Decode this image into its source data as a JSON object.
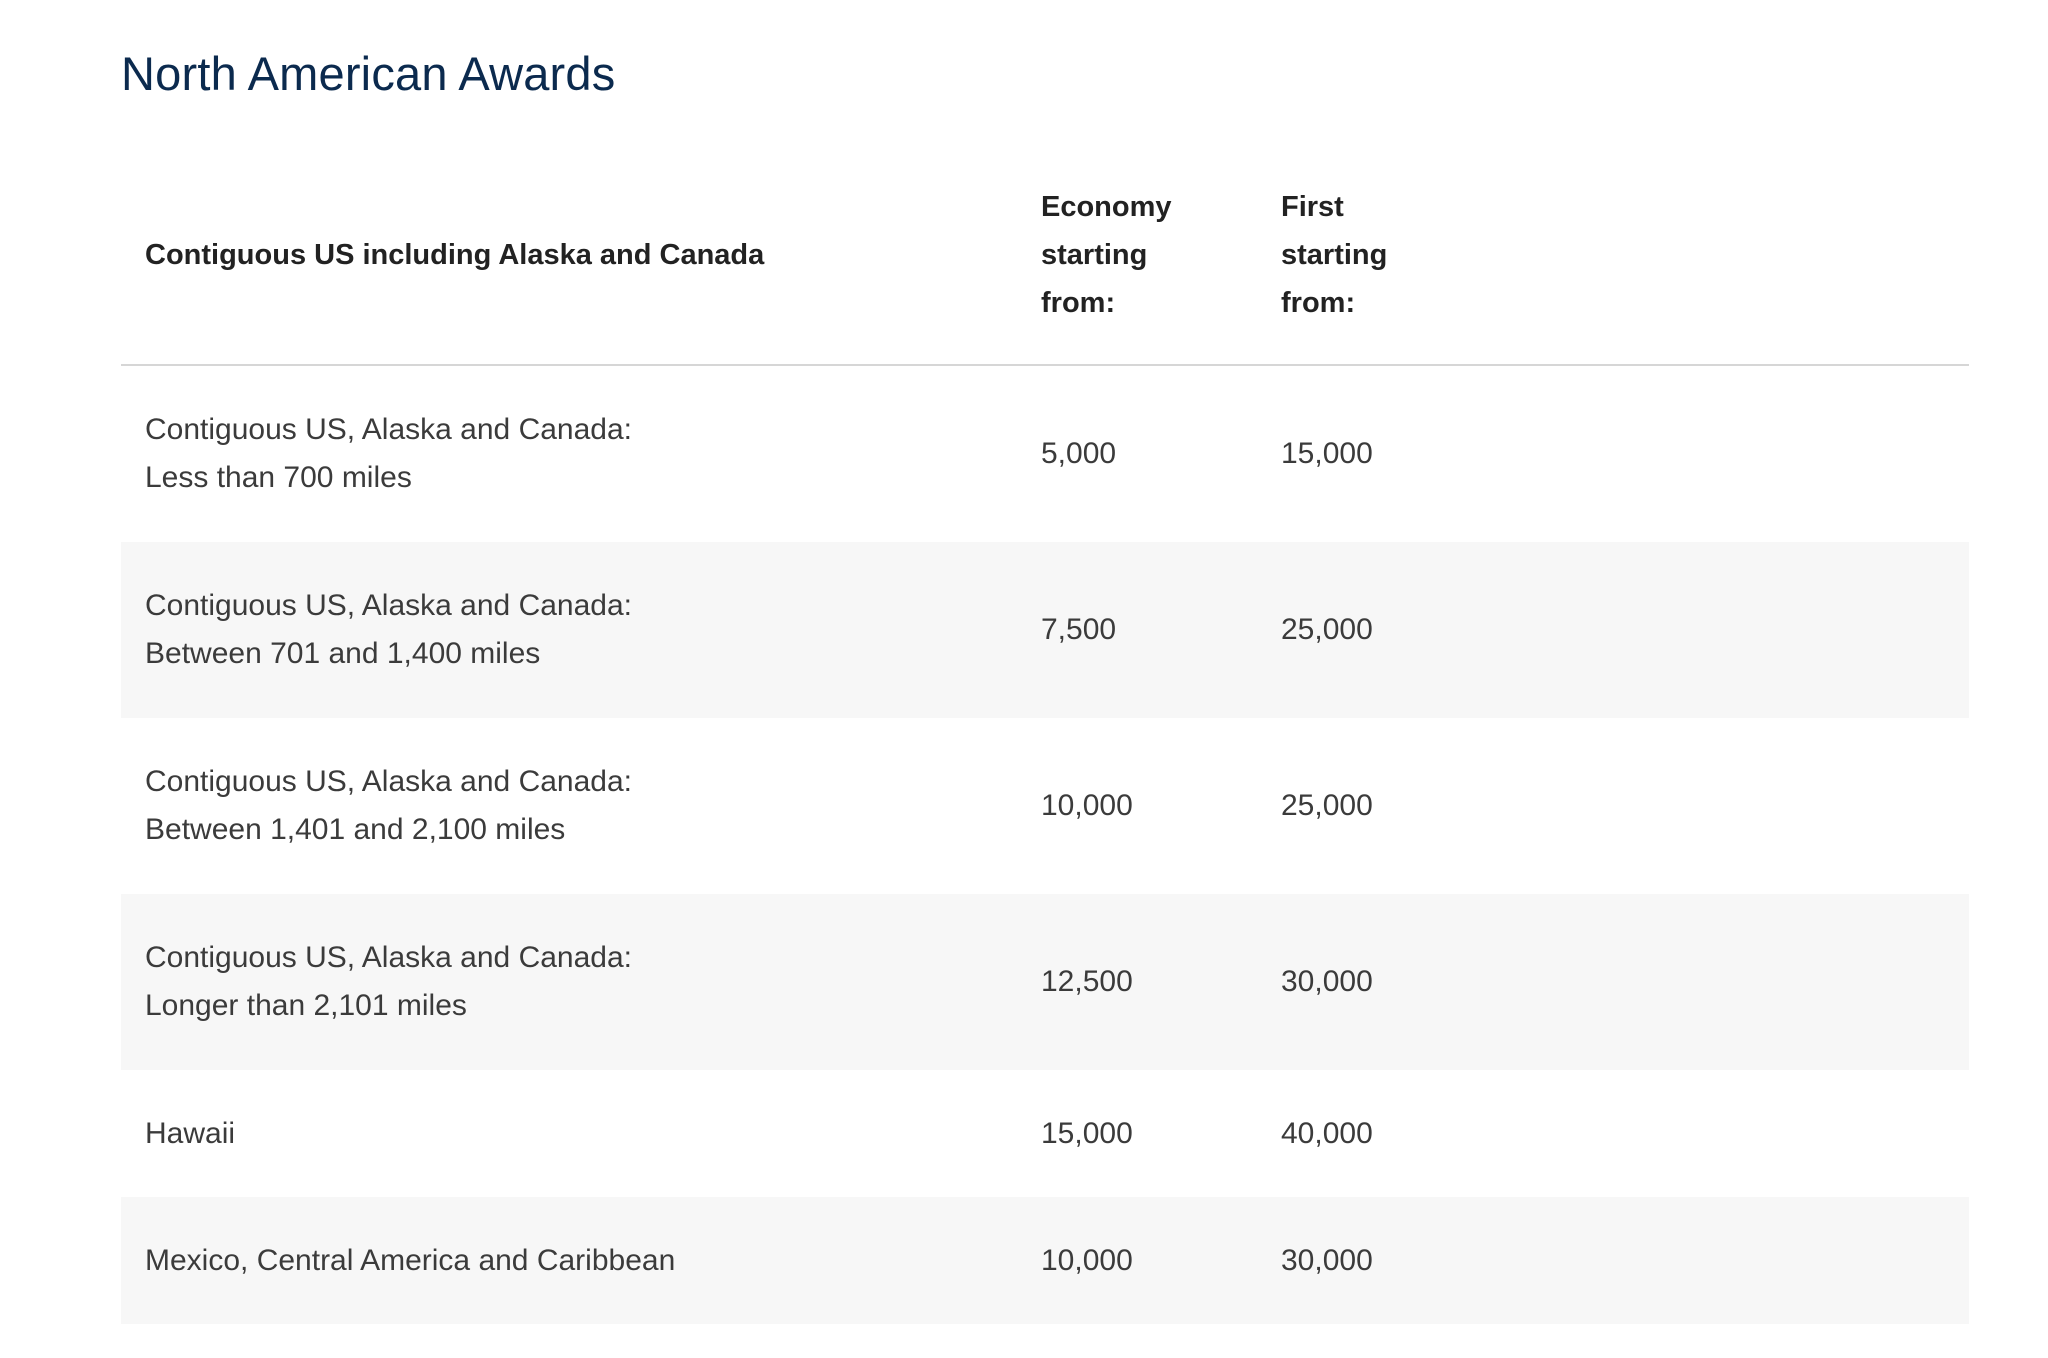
{
  "page": {
    "title": "North American Awards"
  },
  "table": {
    "header": {
      "region": "Contiguous US including Alaska and Canada",
      "economy": [
        "Economy",
        "starting",
        "from:"
      ],
      "first": [
        "First",
        "starting",
        "from:"
      ]
    },
    "rows": [
      {
        "region": [
          "Contiguous US, Alaska and Canada:",
          "Less than 700 miles"
        ],
        "economy": "5,000",
        "first": "15,000"
      },
      {
        "region": [
          "Contiguous US, Alaska and Canada:",
          "Between 701 and 1,400 miles"
        ],
        "economy": "7,500",
        "first": "25,000"
      },
      {
        "region": [
          "Contiguous US, Alaska and Canada:",
          "Between 1,401 and 2,100 miles"
        ],
        "economy": "10,000",
        "first": "25,000"
      },
      {
        "region": [
          "Contiguous US, Alaska and Canada:",
          "Longer than 2,101 miles"
        ],
        "economy": "12,500",
        "first": "30,000"
      },
      {
        "region": [
          "Hawaii"
        ],
        "economy": "15,000",
        "first": "40,000"
      },
      {
        "region": [
          "Mexico, Central America and Caribbean"
        ],
        "economy": "10,000",
        "first": "30,000"
      }
    ]
  },
  "colors": {
    "title": "#0b2a4e",
    "row_alt_background": "#f7f7f7",
    "divider": "#d6d6d6"
  }
}
